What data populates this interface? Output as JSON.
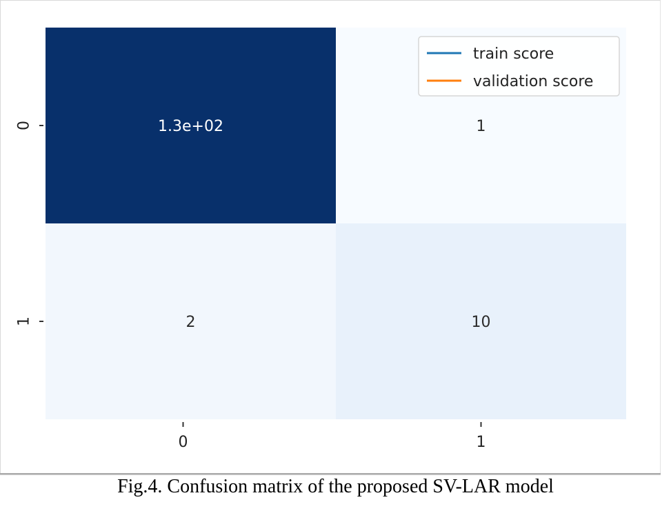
{
  "caption": "Fig.4. Confusion matrix of the proposed SV-LAR model",
  "chart_data": {
    "type": "heatmap",
    "title": "",
    "xlabel": "",
    "ylabel": "",
    "x_categories": [
      "0",
      "1"
    ],
    "y_categories": [
      "0",
      "1"
    ],
    "values": [
      [
        130,
        1
      ],
      [
        2,
        10
      ]
    ],
    "annotations": [
      [
        "1.3e+02",
        "1"
      ],
      [
        "2",
        "10"
      ]
    ],
    "colormap": "Blues",
    "value_range": [
      1,
      130
    ],
    "colors": {
      "cell_0_0": "#08306b",
      "cell_0_1": "#f7fbff",
      "cell_1_0": "#f2f7fd",
      "cell_1_1": "#e8f1fb",
      "text_on_dark": "#ffffff",
      "text_on_light": "#2b2b2b"
    },
    "legend": {
      "position": "upper right",
      "entries": [
        {
          "label": "train score",
          "color": "#1f77b4"
        },
        {
          "label": "validation score",
          "color": "#ff7f0e"
        }
      ]
    },
    "grid": false
  }
}
